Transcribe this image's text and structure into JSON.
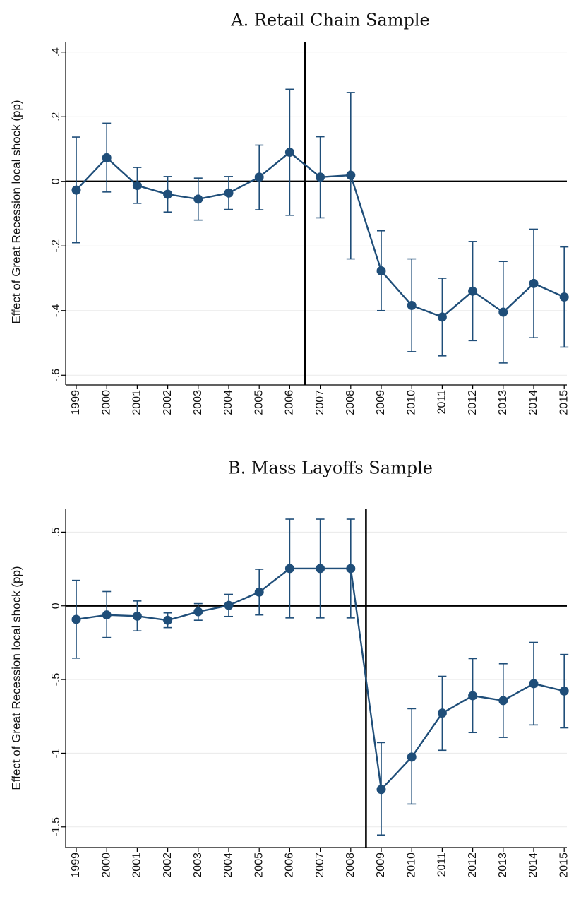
{
  "chart_data": [
    {
      "type": "line",
      "title": "A. Retail Chain Sample",
      "ylabel": "Effect of Great Recession local shock (pp)",
      "xlabel": "",
      "x": [
        "1999",
        "2000",
        "2001",
        "2002",
        "2003",
        "2004",
        "2005",
        "2006",
        "2007",
        "2008",
        "2009",
        "2010",
        "2011",
        "2012",
        "2013",
        "2014",
        "2015"
      ],
      "y_ticks": [
        0.4,
        0.2,
        0,
        -0.2,
        -0.4,
        -0.6
      ],
      "y_tick_labels": [
        ".4",
        ".2",
        "0",
        "-.2",
        "-.4",
        "-.6"
      ],
      "ylim": [
        -0.63,
        0.43
      ],
      "reference_year_line": [
        2006,
        2007
      ],
      "series": [
        {
          "color": "#1f4e79",
          "values": [
            -0.027,
            0.073,
            -0.013,
            -0.04,
            -0.055,
            -0.036,
            0.013,
            0.09,
            0.013,
            0.019,
            -0.277,
            -0.384,
            -0.42,
            -0.34,
            -0.405,
            -0.316,
            -0.358
          ],
          "ci_low": [
            -0.19,
            -0.033,
            -0.068,
            -0.095,
            -0.12,
            -0.087,
            -0.088,
            -0.105,
            -0.113,
            -0.24,
            -0.4,
            -0.527,
            -0.54,
            -0.493,
            -0.562,
            -0.484,
            -0.513
          ],
          "ci_high": [
            0.137,
            0.18,
            0.043,
            0.015,
            0.01,
            0.015,
            0.112,
            0.285,
            0.138,
            0.275,
            -0.153,
            -0.24,
            -0.3,
            -0.186,
            -0.248,
            -0.148,
            -0.203
          ]
        }
      ]
    },
    {
      "type": "line",
      "title": "B. Mass Layoffs Sample",
      "ylabel": "Effect of Great Recession local shock (pp)",
      "xlabel": "",
      "x": [
        "1999",
        "2000",
        "2001",
        "2002",
        "2003",
        "2004",
        "2005",
        "2006",
        "2007",
        "2008",
        "2009",
        "2010",
        "2011",
        "2012",
        "2013",
        "2014",
        "2015"
      ],
      "y_ticks": [
        0.5,
        0,
        -0.5,
        -1,
        -1.5
      ],
      "y_tick_labels": [
        ".5",
        "0",
        "-.5",
        "-1",
        "-1.5"
      ],
      "ylim": [
        -1.64,
        0.66
      ],
      "reference_year_line": [
        2008,
        2009
      ],
      "series": [
        {
          "color": "#1f4e79",
          "values": [
            -0.092,
            -0.062,
            -0.07,
            -0.098,
            -0.04,
            0.003,
            0.093,
            0.253,
            0.253,
            0.253,
            -1.246,
            -1.026,
            -0.728,
            -0.61,
            -0.643,
            -0.528,
            -0.578
          ],
          "ci_low": [
            -0.355,
            -0.215,
            -0.17,
            -0.148,
            -0.098,
            -0.072,
            -0.062,
            -0.082,
            -0.082,
            -0.082,
            -1.555,
            -1.345,
            -0.98,
            -0.86,
            -0.893,
            -0.808,
            -0.828
          ],
          "ci_high": [
            0.173,
            0.097,
            0.033,
            -0.048,
            0.015,
            0.078,
            0.248,
            0.588,
            0.588,
            0.588,
            -0.928,
            -0.698,
            -0.478,
            -0.358,
            -0.393,
            -0.248,
            -0.33
          ]
        }
      ]
    }
  ]
}
